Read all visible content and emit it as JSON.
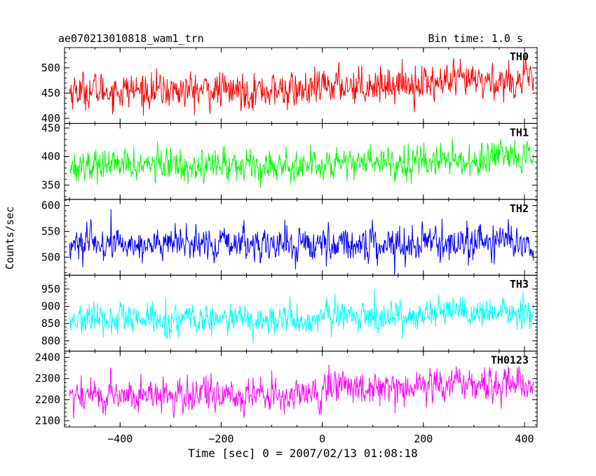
{
  "header": {
    "title_left": "ae070213010818_wam1_trn",
    "title_right": "Bin time: 1.0 s"
  },
  "chart_data": {
    "type": "line",
    "title": "ae070213010818_wam1_trn",
    "subtitle": "Bin time: 1.0 s",
    "xlabel": "Time [sec] 0 = 2007/02/13 01:08:18",
    "ylabel": "Counts/sec",
    "xlim": [
      -510,
      425
    ],
    "x_range": [
      -500,
      418
    ],
    "bin_time": 1.0,
    "x_ticks": [
      -400,
      -200,
      0,
      200,
      400
    ],
    "x_tick_labels": [
      "−400",
      "−200",
      "0",
      "200",
      "400"
    ],
    "grid": false,
    "panels": [
      {
        "name": "TH0",
        "color": "#ff0000",
        "ylim": [
          390,
          540
        ],
        "yticks": [
          400,
          450,
          500
        ],
        "pre_mean": 455,
        "post_mean": 465,
        "end_mean": 475,
        "noise": 24
      },
      {
        "name": "TH1",
        "color": "#00ff00",
        "ylim": [
          325,
          458
        ],
        "yticks": [
          350,
          400,
          450
        ],
        "pre_mean": 385,
        "post_mean": 390,
        "end_mean": 395,
        "noise": 19
      },
      {
        "name": "TH2",
        "color": "#0000ff",
        "ylim": [
          465,
          612
        ],
        "yticks": [
          500,
          550,
          600
        ],
        "pre_mean": 525,
        "post_mean": 525,
        "end_mean": 530,
        "noise": 22
      },
      {
        "name": "TH3",
        "color": "#00ffff",
        "ylim": [
          770,
          990
        ],
        "yticks": [
          800,
          850,
          900,
          950
        ],
        "pre_mean": 860,
        "post_mean": 870,
        "end_mean": 880,
        "noise": 30
      },
      {
        "name": "TH0123",
        "color": "#ff00ff",
        "ylim": [
          2070,
          2430
        ],
        "yticks": [
          2100,
          2200,
          2300,
          2400
        ],
        "pre_mean": 2220,
        "post_mean": 2260,
        "end_mean": 2280,
        "noise": 55
      }
    ]
  }
}
